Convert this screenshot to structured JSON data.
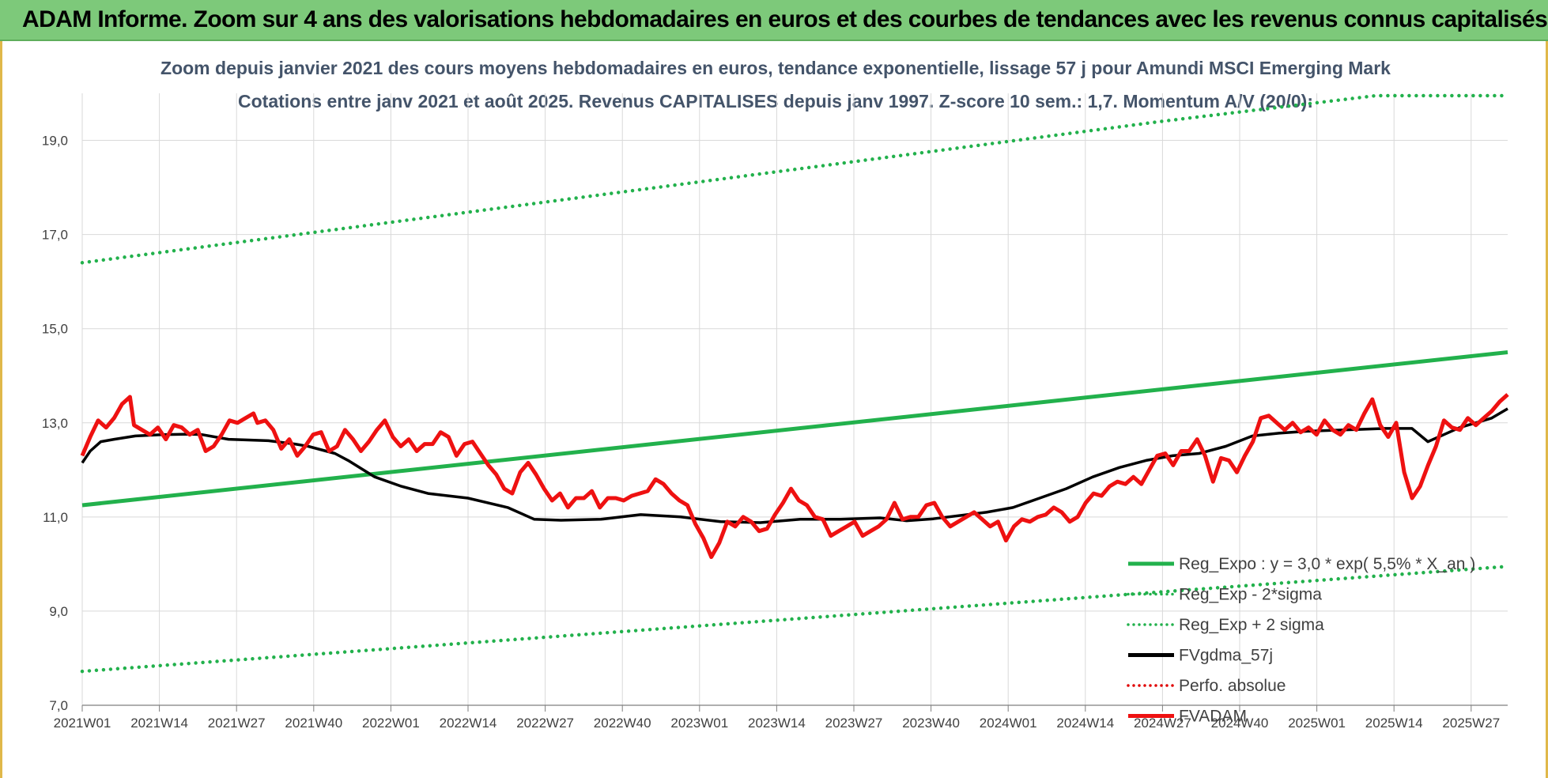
{
  "banner": {
    "title": "ADAM Informe. Zoom sur 4 ans des valorisations hebdomadaires en euros et des courbes de tendances avec les revenus connus capitalisés"
  },
  "chart_data": {
    "type": "line",
    "title": "Zoom depuis janvier 2021 des cours moyens hebdomadaires en euros, tendance exponentielle, lissage 57 j pour Amundi MSCI Emerging Mark",
    "subtitle": "Cotations entre janv 2021 et août 2025. Revenus CAPITALISES depuis janv 1997. Z-score 10 sem.: 1,7. Momentum A/V (20/0):",
    "xlabel": "",
    "ylabel": "",
    "ylim": [
      7.0,
      20.0
    ],
    "yticks": [
      "7,0",
      "9,0",
      "11,0",
      "13,0",
      "15,0",
      "17,0",
      "19,0"
    ],
    "xticks": [
      "2021W01",
      "2021W14",
      "2021W27",
      "2021W40",
      "2022W01",
      "2022W14",
      "2022W27",
      "2022W40",
      "2023W01",
      "2023W14",
      "2023W27",
      "2023W40",
      "2024W01",
      "2024W14",
      "2024W27",
      "2024W40",
      "2025W01",
      "2025W14",
      "2025W27"
    ],
    "grid": true,
    "legend_position": "right",
    "legend": [
      {
        "label": "Reg_Expo : y = 3,0 *  exp( 5,5% *  X_an )",
        "color": "#22b14c",
        "style": "solid"
      },
      {
        "label": "Reg_Exp - 2*sigma",
        "color": "#22b14c",
        "style": "dotted"
      },
      {
        "label": "Reg_Exp + 2 sigma",
        "color": "#22b14c",
        "style": "dotted"
      },
      {
        "label": "FVgdma_57j",
        "color": "#000000",
        "style": "solid"
      },
      {
        "label": "Perfo. absolue",
        "color": "#e00000",
        "style": "dotted"
      },
      {
        "label": "FVADAM",
        "color": "#ee1111",
        "style": "solid"
      }
    ],
    "series": [
      {
        "key": "reg_expo",
        "points": [
          [
            0,
            11.25
          ],
          [
            238,
            14.5
          ]
        ]
      },
      {
        "key": "reg_minus",
        "points": [
          [
            0,
            7.72
          ],
          [
            238,
            9.95
          ]
        ]
      },
      {
        "key": "reg_plus",
        "points": [
          [
            0,
            16.4
          ],
          [
            180,
            19.4
          ],
          [
            216,
            19.95
          ],
          [
            238,
            19.95
          ]
        ]
      },
      {
        "key": "fvgdma",
        "points": [
          [
            0,
            12.15
          ],
          [
            3,
            12.4
          ],
          [
            7,
            12.6
          ],
          [
            12,
            12.65
          ],
          [
            20,
            12.72
          ],
          [
            30,
            12.75
          ],
          [
            40,
            12.76
          ],
          [
            45,
            12.75
          ],
          [
            55,
            12.65
          ],
          [
            70,
            12.62
          ],
          [
            80,
            12.55
          ],
          [
            85,
            12.5
          ],
          [
            95,
            12.35
          ],
          [
            100,
            12.2
          ],
          [
            110,
            11.85
          ],
          [
            120,
            11.65
          ],
          [
            130,
            11.5
          ],
          [
            145,
            11.4
          ],
          [
            160,
            11.2
          ],
          [
            170,
            10.95
          ],
          [
            180,
            10.93
          ],
          [
            195,
            10.95
          ],
          [
            210,
            11.05
          ],
          [
            225,
            11.0
          ],
          [
            240,
            10.9
          ],
          [
            255,
            10.88
          ],
          [
            270,
            10.95
          ],
          [
            285,
            10.95
          ],
          [
            300,
            10.98
          ],
          [
            310,
            10.92
          ],
          [
            320,
            10.96
          ],
          [
            340,
            11.1
          ],
          [
            350,
            11.2
          ],
          [
            360,
            11.4
          ],
          [
            370,
            11.6
          ],
          [
            380,
            11.85
          ],
          [
            390,
            12.05
          ],
          [
            400,
            12.2
          ],
          [
            410,
            12.3
          ],
          [
            420,
            12.35
          ],
          [
            430,
            12.5
          ],
          [
            440,
            12.72
          ],
          [
            450,
            12.78
          ],
          [
            460,
            12.82
          ],
          [
            470,
            12.84
          ],
          [
            480,
            12.86
          ],
          [
            490,
            12.88
          ],
          [
            500,
            12.88
          ],
          [
            506,
            12.6
          ],
          [
            512,
            12.75
          ],
          [
            518,
            12.9
          ],
          [
            524,
            13.0
          ],
          [
            530,
            13.1
          ],
          [
            536,
            13.3
          ]
        ]
      },
      {
        "key": "fvadam",
        "points": [
          [
            0,
            12.3
          ],
          [
            2,
            12.7
          ],
          [
            4,
            13.05
          ],
          [
            6,
            12.9
          ],
          [
            8,
            13.1
          ],
          [
            10,
            13.4
          ],
          [
            12,
            13.55
          ],
          [
            13,
            12.95
          ],
          [
            15,
            12.85
          ],
          [
            17,
            12.75
          ],
          [
            19,
            12.9
          ],
          [
            21,
            12.65
          ],
          [
            23,
            12.95
          ],
          [
            25,
            12.9
          ],
          [
            27,
            12.75
          ],
          [
            29,
            12.85
          ],
          [
            31,
            12.4
          ],
          [
            33,
            12.5
          ],
          [
            35,
            12.75
          ],
          [
            37,
            13.05
          ],
          [
            39,
            13.0
          ],
          [
            41,
            13.1
          ],
          [
            43,
            13.2
          ],
          [
            44,
            13.0
          ],
          [
            46,
            13.05
          ],
          [
            48,
            12.85
          ],
          [
            50,
            12.45
          ],
          [
            52,
            12.65
          ],
          [
            54,
            12.3
          ],
          [
            56,
            12.5
          ],
          [
            58,
            12.75
          ],
          [
            60,
            12.8
          ],
          [
            62,
            12.4
          ],
          [
            64,
            12.5
          ],
          [
            66,
            12.85
          ],
          [
            68,
            12.65
          ],
          [
            70,
            12.4
          ],
          [
            72,
            12.6
          ],
          [
            74,
            12.85
          ],
          [
            76,
            13.05
          ],
          [
            78,
            12.7
          ],
          [
            80,
            12.5
          ],
          [
            82,
            12.65
          ],
          [
            84,
            12.4
          ],
          [
            86,
            12.55
          ],
          [
            88,
            12.55
          ],
          [
            90,
            12.8
          ],
          [
            92,
            12.7
          ],
          [
            94,
            12.3
          ],
          [
            96,
            12.55
          ],
          [
            98,
            12.6
          ],
          [
            100,
            12.35
          ],
          [
            102,
            12.1
          ],
          [
            104,
            11.9
          ],
          [
            106,
            11.6
          ],
          [
            108,
            11.5
          ],
          [
            110,
            11.95
          ],
          [
            112,
            12.15
          ],
          [
            114,
            11.9
          ],
          [
            116,
            11.6
          ],
          [
            118,
            11.35
          ],
          [
            120,
            11.5
          ],
          [
            122,
            11.2
          ],
          [
            124,
            11.4
          ],
          [
            126,
            11.4
          ],
          [
            128,
            11.55
          ],
          [
            130,
            11.2
          ],
          [
            132,
            11.4
          ],
          [
            134,
            11.4
          ],
          [
            136,
            11.35
          ],
          [
            138,
            11.45
          ],
          [
            140,
            11.5
          ],
          [
            142,
            11.55
          ],
          [
            144,
            11.8
          ],
          [
            146,
            11.7
          ],
          [
            148,
            11.5
          ],
          [
            150,
            11.35
          ],
          [
            152,
            11.25
          ],
          [
            154,
            10.85
          ],
          [
            156,
            10.55
          ],
          [
            158,
            10.15
          ],
          [
            160,
            10.45
          ],
          [
            162,
            10.9
          ],
          [
            164,
            10.8
          ],
          [
            166,
            11.0
          ],
          [
            168,
            10.9
          ],
          [
            170,
            10.7
          ],
          [
            172,
            10.75
          ],
          [
            174,
            11.05
          ],
          [
            176,
            11.3
          ],
          [
            178,
            11.6
          ],
          [
            180,
            11.35
          ],
          [
            182,
            11.25
          ],
          [
            184,
            11.0
          ],
          [
            186,
            10.95
          ],
          [
            188,
            10.6
          ],
          [
            190,
            10.7
          ],
          [
            192,
            10.8
          ],
          [
            194,
            10.9
          ],
          [
            196,
            10.6
          ],
          [
            198,
            10.7
          ],
          [
            200,
            10.8
          ],
          [
            202,
            10.95
          ],
          [
            204,
            11.3
          ],
          [
            206,
            10.95
          ],
          [
            208,
            11.0
          ],
          [
            210,
            11.0
          ],
          [
            212,
            11.25
          ],
          [
            214,
            11.3
          ],
          [
            216,
            11.0
          ],
          [
            218,
            10.8
          ],
          [
            220,
            10.9
          ],
          [
            222,
            11.0
          ],
          [
            224,
            11.1
          ],
          [
            226,
            10.95
          ],
          [
            228,
            10.8
          ],
          [
            230,
            10.9
          ],
          [
            232,
            10.5
          ],
          [
            234,
            10.8
          ],
          [
            236,
            10.95
          ],
          [
            238,
            10.9
          ],
          [
            240,
            11.0
          ],
          [
            242,
            11.05
          ],
          [
            244,
            11.2
          ],
          [
            246,
            11.1
          ],
          [
            248,
            10.9
          ],
          [
            250,
            11.0
          ],
          [
            252,
            11.3
          ],
          [
            254,
            11.5
          ],
          [
            256,
            11.45
          ],
          [
            258,
            11.65
          ],
          [
            260,
            11.75
          ],
          [
            262,
            11.7
          ],
          [
            264,
            11.85
          ],
          [
            266,
            11.7
          ],
          [
            268,
            12.0
          ],
          [
            270,
            12.3
          ],
          [
            272,
            12.35
          ],
          [
            274,
            12.1
          ],
          [
            276,
            12.4
          ],
          [
            278,
            12.4
          ],
          [
            280,
            12.65
          ],
          [
            282,
            12.3
          ],
          [
            284,
            11.75
          ],
          [
            286,
            12.25
          ],
          [
            288,
            12.2
          ],
          [
            290,
            11.95
          ],
          [
            292,
            12.3
          ],
          [
            294,
            12.6
          ],
          [
            296,
            13.1
          ],
          [
            298,
            13.15
          ],
          [
            300,
            13.0
          ],
          [
            302,
            12.85
          ],
          [
            304,
            13.0
          ],
          [
            306,
            12.8
          ],
          [
            308,
            12.9
          ],
          [
            310,
            12.75
          ],
          [
            312,
            13.05
          ],
          [
            314,
            12.85
          ],
          [
            316,
            12.75
          ],
          [
            318,
            12.95
          ],
          [
            320,
            12.85
          ],
          [
            322,
            13.2
          ],
          [
            324,
            13.5
          ],
          [
            326,
            12.95
          ],
          [
            328,
            12.7
          ],
          [
            330,
            13.0
          ],
          [
            332,
            11.95
          ],
          [
            334,
            11.4
          ],
          [
            336,
            11.65
          ],
          [
            338,
            12.1
          ],
          [
            340,
            12.5
          ],
          [
            342,
            13.05
          ],
          [
            344,
            12.9
          ],
          [
            346,
            12.85
          ],
          [
            348,
            13.1
          ],
          [
            350,
            12.95
          ],
          [
            352,
            13.1
          ],
          [
            354,
            13.25
          ],
          [
            356,
            13.45
          ],
          [
            358,
            13.6
          ]
        ]
      }
    ]
  }
}
